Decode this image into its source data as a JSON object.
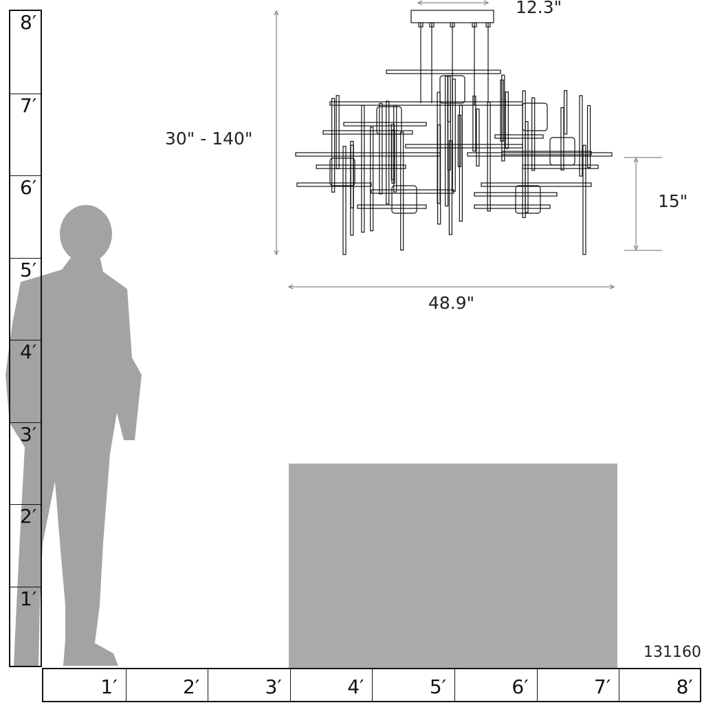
{
  "vertical_ruler": {
    "labels": [
      "8′",
      "7′",
      "6′",
      "5′",
      "4′",
      "3′",
      "2′",
      "1′"
    ]
  },
  "horizontal_ruler": {
    "labels": [
      "1′",
      "2′",
      "3′",
      "4′",
      "5′",
      "6′",
      "7′",
      "8′"
    ]
  },
  "dimensions": {
    "canopy_width": "12.3\"",
    "height_range": "30\" - 140\"",
    "fixture_height": "15\"",
    "fixture_width": "48.9\""
  },
  "model_number": "131160",
  "colors": {
    "silhouette": "#a3a3a3",
    "table": "#aaaaaa",
    "lines": "#111111",
    "dimension_lines": "#888888"
  }
}
